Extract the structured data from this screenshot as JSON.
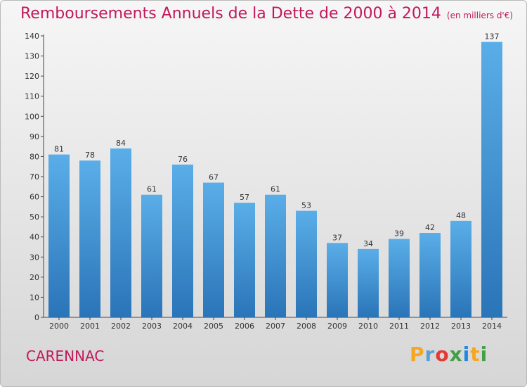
{
  "header": {
    "title": "Remboursements Annuels de la Dette de 2000 à 2014",
    "unit": "(en milliers d'€)"
  },
  "footer": {
    "place": "CARENNAC",
    "logo_letters": [
      "P",
      "r",
      "o",
      "x",
      "i",
      "t",
      "i"
    ],
    "logo_colors": [
      "#f5a623",
      "#5aa0d8",
      "#e53935",
      "#43a047",
      "#1e88e5",
      "#f5a623",
      "#43a047"
    ]
  },
  "chart_data": {
    "type": "bar",
    "categories": [
      "2000",
      "2001",
      "2002",
      "2003",
      "2004",
      "2005",
      "2006",
      "2007",
      "2008",
      "2009",
      "2010",
      "2011",
      "2012",
      "2013",
      "2014"
    ],
    "values": [
      81,
      78,
      84,
      61,
      76,
      67,
      57,
      61,
      53,
      37,
      34,
      39,
      42,
      48,
      137
    ],
    "ylim": [
      0,
      140
    ],
    "yticks": [
      0,
      10,
      20,
      30,
      40,
      50,
      60,
      70,
      80,
      90,
      100,
      110,
      120,
      130,
      140
    ],
    "grid": false,
    "bar_color_top": "#5aaee8",
    "bar_color_bottom": "#2a74b8"
  }
}
